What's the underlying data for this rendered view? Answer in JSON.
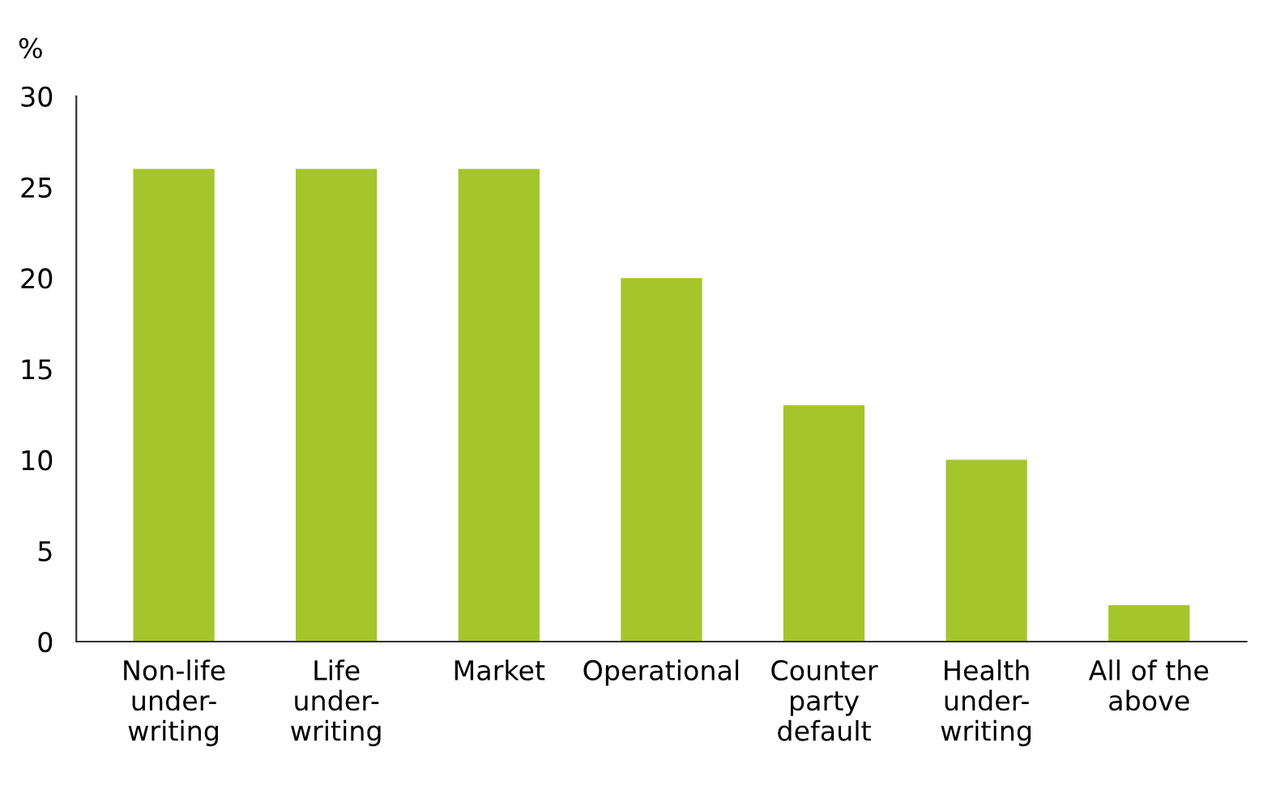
{
  "chart_data": {
    "type": "bar",
    "ylabel": "%",
    "categories": [
      "Non-life\nunder-\nwriting",
      "Life\nunder-\nwriting",
      "Market",
      "Operational",
      "Counter\nparty\ndefault",
      "Health\nunder-\nwriting",
      "All of the\nabove"
    ],
    "values": [
      26,
      26,
      26,
      20,
      13,
      10,
      2
    ],
    "color": "#a5c52d",
    "ylim": [
      0,
      30
    ],
    "yticks": [
      0,
      5,
      10,
      15,
      20,
      25,
      30
    ],
    "grid": false
  }
}
